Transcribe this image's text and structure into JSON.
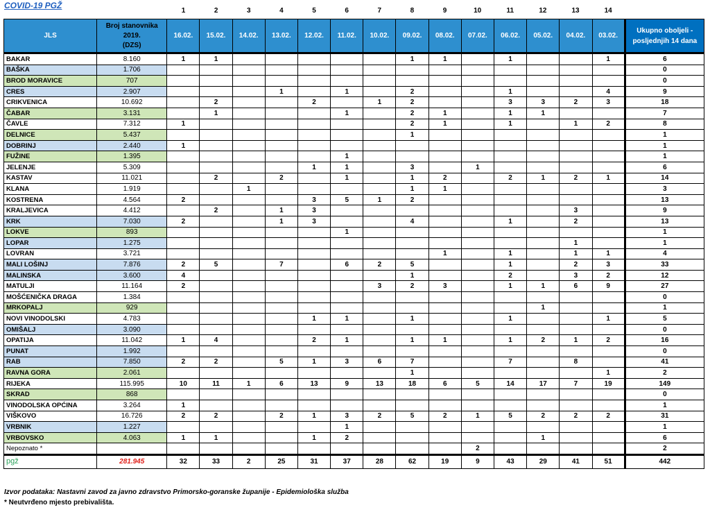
{
  "title": "COVID-19  PGŽ",
  "column_numbers": [
    "1",
    "2",
    "3",
    "4",
    "5",
    "6",
    "7",
    "8",
    "9",
    "10",
    "11",
    "12",
    "13",
    "14"
  ],
  "headers": {
    "jls": "JLS",
    "population_line1": "Broj stanovnika",
    "population_line2": "2019.",
    "population_line3": "(DZS)",
    "dates": [
      "16.02.",
      "15.02.",
      "14.02.",
      "13.02.",
      "12.02.",
      "11.02.",
      "10.02.",
      "09.02.",
      "08.02.",
      "07.02.",
      "06.02.",
      "05.02.",
      "04.02.",
      "03.02."
    ],
    "total_line1": "Ukupno oboljeli -",
    "total_line2": "posljednjih 14 dana"
  },
  "rows": [
    {
      "name": "BAKAR",
      "pop": "8.160",
      "color": "white",
      "days": [
        "1",
        "1",
        "",
        "",
        "",
        "",
        "",
        "1",
        "1",
        "",
        "1",
        "",
        "",
        "1"
      ],
      "total": "6"
    },
    {
      "name": "BAŠKA",
      "pop": "1.706",
      "color": "blue",
      "days": [
        "",
        "",
        "",
        "",
        "",
        "",
        "",
        "",
        "",
        "",
        "",
        "",
        "",
        ""
      ],
      "total": "0"
    },
    {
      "name": "BROD MORAVICE",
      "pop": "707",
      "color": "green",
      "days": [
        "",
        "",
        "",
        "",
        "",
        "",
        "",
        "",
        "",
        "",
        "",
        "",
        "",
        ""
      ],
      "total": "0"
    },
    {
      "name": "CRES",
      "pop": "2.907",
      "color": "blue",
      "days": [
        "",
        "",
        "",
        "1",
        "",
        "1",
        "",
        "2",
        "",
        "",
        "1",
        "",
        "",
        "4"
      ],
      "total": "9"
    },
    {
      "name": "CRIKVENICA",
      "pop": "10.692",
      "color": "white",
      "days": [
        "",
        "2",
        "",
        "",
        "2",
        "",
        "1",
        "2",
        "",
        "",
        "3",
        "3",
        "2",
        "3"
      ],
      "total": "18"
    },
    {
      "name": "ČABAR",
      "pop": "3.131",
      "color": "green",
      "days": [
        "",
        "1",
        "",
        "",
        "",
        "1",
        "",
        "2",
        "1",
        "",
        "1",
        "1",
        "",
        ""
      ],
      "total": "7"
    },
    {
      "name": "ČAVLE",
      "pop": "7.312",
      "color": "white",
      "days": [
        "1",
        "",
        "",
        "",
        "",
        "",
        "",
        "2",
        "1",
        "",
        "1",
        "",
        "1",
        "2"
      ],
      "total": "8"
    },
    {
      "name": "DELNICE",
      "pop": "5.437",
      "color": "green",
      "days": [
        "",
        "",
        "",
        "",
        "",
        "",
        "",
        "1",
        "",
        "",
        "",
        "",
        "",
        ""
      ],
      "total": "1"
    },
    {
      "name": "DOBRINJ",
      "pop": "2.440",
      "color": "blue",
      "days": [
        "1",
        "",
        "",
        "",
        "",
        "",
        "",
        "",
        "",
        "",
        "",
        "",
        "",
        ""
      ],
      "total": "1"
    },
    {
      "name": "FUŽINE",
      "pop": "1.395",
      "color": "green",
      "days": [
        "",
        "",
        "",
        "",
        "",
        "1",
        "",
        "",
        "",
        "",
        "",
        "",
        "",
        ""
      ],
      "total": "1"
    },
    {
      "name": "JELENJE",
      "pop": "5.309",
      "color": "white",
      "days": [
        "",
        "",
        "",
        "",
        "1",
        "1",
        "",
        "3",
        "",
        "1",
        "",
        "",
        "",
        ""
      ],
      "total": "6"
    },
    {
      "name": "KASTAV",
      "pop": "11.021",
      "color": "white",
      "days": [
        "",
        "2",
        "",
        "2",
        "",
        "1",
        "",
        "1",
        "2",
        "",
        "2",
        "1",
        "2",
        "1"
      ],
      "total": "14"
    },
    {
      "name": "KLANA",
      "pop": "1.919",
      "color": "white",
      "days": [
        "",
        "",
        "1",
        "",
        "",
        "",
        "",
        "1",
        "1",
        "",
        "",
        "",
        "",
        ""
      ],
      "total": "3"
    },
    {
      "name": "KOSTRENA",
      "pop": "4.564",
      "color": "white",
      "days": [
        "2",
        "",
        "",
        "",
        "3",
        "5",
        "1",
        "2",
        "",
        "",
        "",
        "",
        "",
        ""
      ],
      "total": "13"
    },
    {
      "name": "KRALJEVICA",
      "pop": "4.412",
      "color": "white",
      "days": [
        "",
        "2",
        "",
        "1",
        "3",
        "",
        "",
        "",
        "",
        "",
        "",
        "",
        "3",
        ""
      ],
      "total": "9"
    },
    {
      "name": "KRK",
      "pop": "7.030",
      "color": "blue",
      "days": [
        "2",
        "",
        "",
        "1",
        "3",
        "",
        "",
        "4",
        "",
        "",
        "1",
        "",
        "2",
        ""
      ],
      "total": "13"
    },
    {
      "name": "LOKVE",
      "pop": "893",
      "color": "green",
      "days": [
        "",
        "",
        "",
        "",
        "",
        "1",
        "",
        "",
        "",
        "",
        "",
        "",
        "",
        ""
      ],
      "total": "1"
    },
    {
      "name": "LOPAR",
      "pop": "1.275",
      "color": "blue",
      "days": [
        "",
        "",
        "",
        "",
        "",
        "",
        "",
        "",
        "",
        "",
        "",
        "",
        "1",
        ""
      ],
      "total": "1"
    },
    {
      "name": "LOVRAN",
      "pop": "3.721",
      "color": "white",
      "days": [
        "",
        "",
        "",
        "",
        "",
        "",
        "",
        "",
        "1",
        "",
        "1",
        "",
        "1",
        "1"
      ],
      "total": "4"
    },
    {
      "name": "MALI LOŠINJ",
      "pop": "7.876",
      "color": "blue",
      "days": [
        "2",
        "5",
        "",
        "7",
        "",
        "6",
        "2",
        "5",
        "",
        "",
        "1",
        "",
        "2",
        "3"
      ],
      "total": "33"
    },
    {
      "name": "MALINSKA",
      "pop": "3.600",
      "color": "blue",
      "days": [
        "4",
        "",
        "",
        "",
        "",
        "",
        "",
        "1",
        "",
        "",
        "2",
        "",
        "3",
        "2"
      ],
      "total": "12"
    },
    {
      "name": "MATULJI",
      "pop": "11.164",
      "color": "white",
      "days": [
        "2",
        "",
        "",
        "",
        "",
        "",
        "3",
        "2",
        "3",
        "",
        "1",
        "1",
        "6",
        "9"
      ],
      "total": "27"
    },
    {
      "name": "MOŠĆENIČKA DRAGA",
      "pop": "1.384",
      "color": "white",
      "days": [
        "",
        "",
        "",
        "",
        "",
        "",
        "",
        "",
        "",
        "",
        "",
        "",
        "",
        ""
      ],
      "total": "0"
    },
    {
      "name": "MRKOPALJ",
      "pop": "929",
      "color": "green",
      "days": [
        "",
        "",
        "",
        "",
        "",
        "",
        "",
        "",
        "",
        "",
        "",
        "1",
        "",
        ""
      ],
      "total": "1"
    },
    {
      "name": "NOVI VINODOLSKI",
      "pop": "4.783",
      "color": "white",
      "days": [
        "",
        "",
        "",
        "",
        "1",
        "1",
        "",
        "1",
        "",
        "",
        "1",
        "",
        "",
        "1"
      ],
      "total": "5"
    },
    {
      "name": "OMIŠALJ",
      "pop": "3.090",
      "color": "blue",
      "days": [
        "",
        "",
        "",
        "",
        "",
        "",
        "",
        "",
        "",
        "",
        "",
        "",
        "",
        ""
      ],
      "total": "0"
    },
    {
      "name": "OPATIJA",
      "pop": "11.042",
      "color": "white",
      "days": [
        "1",
        "4",
        "",
        "",
        "2",
        "1",
        "",
        "1",
        "1",
        "",
        "1",
        "2",
        "1",
        "2"
      ],
      "total": "16"
    },
    {
      "name": "PUNAT",
      "pop": "1.992",
      "color": "blue",
      "days": [
        "",
        "",
        "",
        "",
        "",
        "",
        "",
        "",
        "",
        "",
        "",
        "",
        "",
        ""
      ],
      "total": "0"
    },
    {
      "name": "RAB",
      "pop": "7.850",
      "color": "blue",
      "days": [
        "2",
        "2",
        "",
        "5",
        "1",
        "3",
        "6",
        "7",
        "",
        "",
        "7",
        "",
        "8",
        ""
      ],
      "total": "41"
    },
    {
      "name": "RAVNA GORA",
      "pop": "2.061",
      "color": "green",
      "days": [
        "",
        "",
        "",
        "",
        "",
        "",
        "",
        "1",
        "",
        "",
        "",
        "",
        "",
        "1"
      ],
      "total": "2"
    },
    {
      "name": "RIJEKA",
      "pop": "115.995",
      "color": "white",
      "days": [
        "10",
        "11",
        "1",
        "6",
        "13",
        "9",
        "13",
        "18",
        "6",
        "5",
        "14",
        "17",
        "7",
        "19"
      ],
      "total": "149"
    },
    {
      "name": "SKRAD",
      "pop": "868",
      "color": "green",
      "days": [
        "",
        "",
        "",
        "",
        "",
        "",
        "",
        "",
        "",
        "",
        "",
        "",
        "",
        ""
      ],
      "total": "0"
    },
    {
      "name": "VINODOLSKA OPĆINA",
      "pop": "3.264",
      "color": "white",
      "days": [
        "1",
        "",
        "",
        "",
        "",
        "",
        "",
        "",
        "",
        "",
        "",
        "",
        "",
        ""
      ],
      "total": "1"
    },
    {
      "name": "VIŠKOVO",
      "pop": "16.726",
      "color": "white",
      "days": [
        "2",
        "2",
        "",
        "2",
        "1",
        "3",
        "2",
        "5",
        "2",
        "1",
        "5",
        "2",
        "2",
        "2"
      ],
      "total": "31"
    },
    {
      "name": "VRBNIK",
      "pop": "1.227",
      "color": "blue",
      "days": [
        "",
        "",
        "",
        "",
        "",
        "1",
        "",
        "",
        "",
        "",
        "",
        "",
        "",
        ""
      ],
      "total": "1"
    },
    {
      "name": "VRBOVSKO",
      "pop": "4.063",
      "color": "green",
      "days": [
        "1",
        "1",
        "",
        "",
        "1",
        "2",
        "",
        "",
        "",
        "",
        "",
        "1",
        "",
        ""
      ],
      "total": "6"
    },
    {
      "name": "Nepoznato *",
      "pop": "",
      "color": "white",
      "normal": true,
      "days": [
        "",
        "",
        "",
        "",
        "",
        "",
        "",
        "",
        "",
        "2",
        "",
        "",
        "",
        ""
      ],
      "total": "2"
    }
  ],
  "sum": {
    "label": "pgž",
    "pop": "281.945",
    "days": [
      "32",
      "33",
      "2",
      "25",
      "31",
      "37",
      "28",
      "62",
      "19",
      "9",
      "43",
      "29",
      "41",
      "51"
    ],
    "total": "442"
  },
  "source": "Izvor podataka: Nastavni zavod za javno zdravstvo Primorsko-goranske županije  - Epidemiološka služba",
  "note": "* Neutvrđeno mjesto prebivališta."
}
